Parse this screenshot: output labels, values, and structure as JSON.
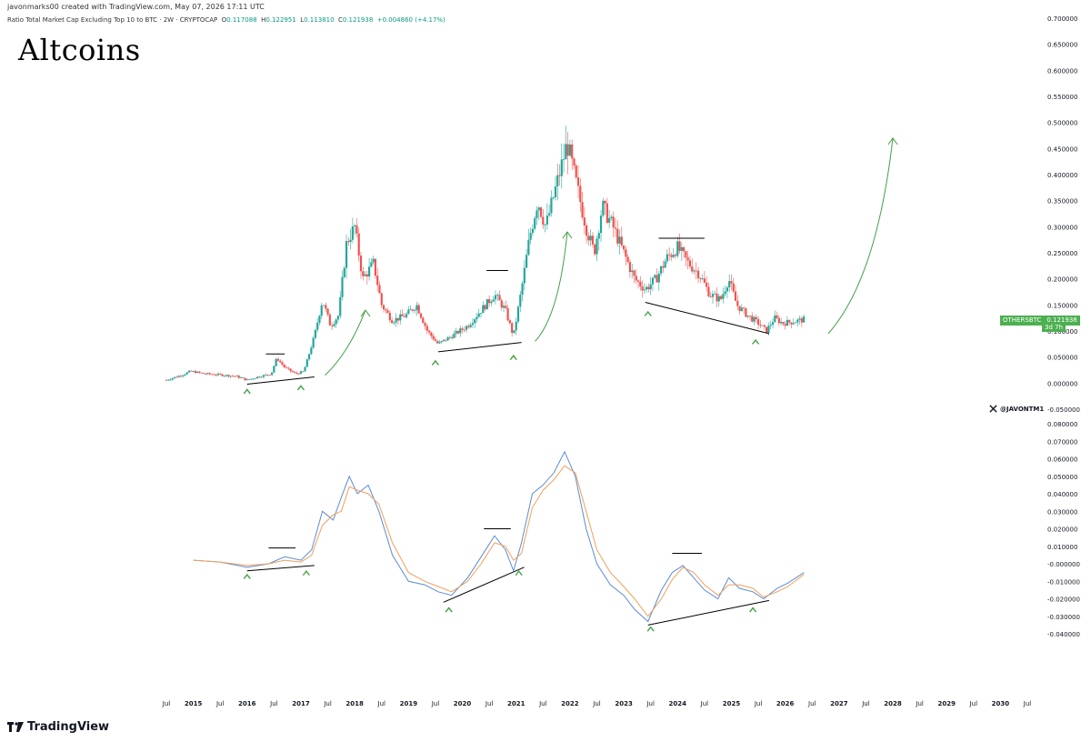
{
  "header": {
    "creator_line": "javonmarks00 created with TradingView.com, May 07, 2026 17:11 UTC",
    "symbol_desc": "Ratio Total Market Cap Excluding Top 10 to BTC · 2W · CRYPTOCAP",
    "o_label": "O",
    "o_value": "0.117088",
    "h_label": "H",
    "h_value": "0.122951",
    "l_label": "L",
    "l_value": "0.113810",
    "c_label": "C",
    "c_value": "0.121938",
    "change": "+0.004860 (+4.17%)"
  },
  "title": "Altcoins",
  "price_tag": {
    "symbol": "OTHERSBTC",
    "value": "0.121938",
    "countdown": "3d 7h"
  },
  "watermark": "@JAVONTM1",
  "brand": "TradingView",
  "colors": {
    "up": "#26a69a",
    "down": "#ef5350",
    "macd": "#5b8bd6",
    "signal": "#f0a05a",
    "arrow": "#43a047",
    "trend": "#000000",
    "tag": "#4caf50"
  },
  "chart_data": [
    {
      "type": "candlestick",
      "name": "price",
      "ylim": [
        -0.05,
        0.7
      ],
      "y_ticks": [
        "0.700000",
        "0.650000",
        "0.600000",
        "0.550000",
        "0.500000",
        "0.450000",
        "0.400000",
        "0.350000",
        "0.300000",
        "0.250000",
        "0.200000",
        "0.150000",
        "0.100000",
        "0.050000",
        "0.000000",
        "-0.050000"
      ],
      "x_ticks": [
        "Jul",
        "2015",
        "Jul",
        "2016",
        "Jul",
        "2017",
        "Jul",
        "2018",
        "Jul",
        "2019",
        "Jul",
        "2020",
        "Jul",
        "2021",
        "Jul",
        "2022",
        "Jul",
        "2023",
        "Jul",
        "2024",
        "Jul",
        "2025",
        "Jul",
        "2026",
        "Jul",
        "2027",
        "Jul",
        "2028",
        "Jul",
        "2029",
        "Jul",
        "2030",
        "Jul"
      ],
      "x_range": [
        2014.5,
        2030.5
      ],
      "grid": false,
      "close_path": [
        [
          2014.5,
          0.006
        ],
        [
          2014.8,
          0.016
        ],
        [
          2014.95,
          0.023
        ],
        [
          2015.2,
          0.018
        ],
        [
          2015.5,
          0.016
        ],
        [
          2015.8,
          0.013
        ],
        [
          2016.0,
          0.006
        ],
        [
          2016.2,
          0.012
        ],
        [
          2016.45,
          0.018
        ],
        [
          2016.55,
          0.048
        ],
        [
          2016.7,
          0.03
        ],
        [
          2016.9,
          0.018
        ],
        [
          2017.05,
          0.022
        ],
        [
          2017.15,
          0.055
        ],
        [
          2017.25,
          0.09
        ],
        [
          2017.4,
          0.16
        ],
        [
          2017.55,
          0.11
        ],
        [
          2017.7,
          0.13
        ],
        [
          2017.85,
          0.27
        ],
        [
          2018.0,
          0.3
        ],
        [
          2018.15,
          0.2
        ],
        [
          2018.35,
          0.23
        ],
        [
          2018.5,
          0.15
        ],
        [
          2018.7,
          0.12
        ],
        [
          2018.95,
          0.13
        ],
        [
          2019.15,
          0.15
        ],
        [
          2019.35,
          0.1
        ],
        [
          2019.55,
          0.075
        ],
        [
          2019.8,
          0.09
        ],
        [
          2020.1,
          0.11
        ],
        [
          2020.35,
          0.14
        ],
        [
          2020.6,
          0.17
        ],
        [
          2020.8,
          0.14
        ],
        [
          2020.95,
          0.09
        ],
        [
          2021.1,
          0.18
        ],
        [
          2021.25,
          0.28
        ],
        [
          2021.4,
          0.35
        ],
        [
          2021.55,
          0.3
        ],
        [
          2021.75,
          0.38
        ],
        [
          2021.95,
          0.46
        ],
        [
          2022.1,
          0.39
        ],
        [
          2022.3,
          0.3
        ],
        [
          2022.45,
          0.25
        ],
        [
          2022.6,
          0.34
        ],
        [
          2022.8,
          0.3
        ],
        [
          2023.0,
          0.25
        ],
        [
          2023.2,
          0.2
        ],
        [
          2023.4,
          0.18
        ],
        [
          2023.6,
          0.2
        ],
        [
          2023.8,
          0.24
        ],
        [
          2024.0,
          0.26
        ],
        [
          2024.2,
          0.23
        ],
        [
          2024.4,
          0.21
        ],
        [
          2024.6,
          0.17
        ],
        [
          2024.8,
          0.16
        ],
        [
          2024.95,
          0.2
        ],
        [
          2025.1,
          0.15
        ],
        [
          2025.3,
          0.13
        ],
        [
          2025.5,
          0.115
        ],
        [
          2025.65,
          0.1
        ],
        [
          2025.8,
          0.125
        ],
        [
          2025.95,
          0.115
        ],
        [
          2026.15,
          0.118
        ],
        [
          2026.35,
          0.121938
        ]
      ],
      "trendlines": [
        {
          "from": [
            2016.0,
            -0.002
          ],
          "to": [
            2017.25,
            0.012
          ]
        },
        {
          "from": [
            2019.55,
            0.06
          ],
          "to": [
            2021.1,
            0.078
          ]
        },
        {
          "from": [
            2023.4,
            0.155
          ],
          "to": [
            2025.7,
            0.095
          ]
        }
      ],
      "resistance_lines": [
        {
          "from": [
            2016.35,
            0.056
          ],
          "to": [
            2016.7,
            0.056
          ]
        },
        {
          "from": [
            2020.45,
            0.216
          ],
          "to": [
            2020.85,
            0.216
          ]
        },
        {
          "from": [
            2023.65,
            0.278
          ],
          "to": [
            2024.5,
            0.278
          ]
        }
      ],
      "up_markers": [
        [
          2016.0,
          -0.015
        ],
        [
          2017.0,
          -0.008
        ],
        [
          2019.5,
          0.04
        ],
        [
          2020.95,
          0.05
        ],
        [
          2023.45,
          0.134
        ],
        [
          2025.45,
          0.08
        ]
      ],
      "arrows": [
        {
          "points": [
            [
              2017.45,
              0.015
            ],
            [
              2017.9,
              0.06
            ],
            [
              2018.2,
              0.14
            ]
          ]
        },
        {
          "points": [
            [
              2021.35,
              0.08
            ],
            [
              2021.8,
              0.13
            ],
            [
              2021.95,
              0.29
            ]
          ]
        },
        {
          "points": [
            [
              2026.8,
              0.095
            ],
            [
              2027.7,
              0.2
            ],
            [
              2028.0,
              0.47
            ]
          ]
        }
      ]
    },
    {
      "type": "line",
      "name": "oscillator",
      "ylim": [
        -0.04,
        0.08
      ],
      "y_ticks": [
        "0.080000",
        "0.070000",
        "0.060000",
        "0.050000",
        "0.040000",
        "0.030000",
        "0.020000",
        "0.010000",
        "-0.000000",
        "-0.010000",
        "-0.020000",
        "-0.030000",
        "-0.040000"
      ],
      "series": [
        {
          "values_key": "fast",
          "points": [
            [
              2015.0,
              0.002
            ],
            [
              2015.5,
              0.001
            ],
            [
              2016.0,
              -0.002
            ],
            [
              2016.4,
              0.0
            ],
            [
              2016.7,
              0.004
            ],
            [
              2017.0,
              0.002
            ],
            [
              2017.2,
              0.008
            ],
            [
              2017.4,
              0.03
            ],
            [
              2017.6,
              0.025
            ],
            [
              2017.75,
              0.038
            ],
            [
              2017.9,
              0.05
            ],
            [
              2018.05,
              0.04
            ],
            [
              2018.25,
              0.045
            ],
            [
              2018.45,
              0.03
            ],
            [
              2018.7,
              0.005
            ],
            [
              2019.0,
              -0.01
            ],
            [
              2019.3,
              -0.012
            ],
            [
              2019.55,
              -0.016
            ],
            [
              2019.8,
              -0.018
            ],
            [
              2020.1,
              -0.008
            ],
            [
              2020.35,
              0.004
            ],
            [
              2020.6,
              0.016
            ],
            [
              2020.8,
              0.008
            ],
            [
              2020.95,
              -0.004
            ],
            [
              2021.1,
              0.012
            ],
            [
              2021.3,
              0.04
            ],
            [
              2021.5,
              0.045
            ],
            [
              2021.7,
              0.052
            ],
            [
              2021.9,
              0.064
            ],
            [
              2022.1,
              0.05
            ],
            [
              2022.3,
              0.02
            ],
            [
              2022.5,
              0.0
            ],
            [
              2022.75,
              -0.012
            ],
            [
              2023.0,
              -0.018
            ],
            [
              2023.2,
              -0.026
            ],
            [
              2023.45,
              -0.033
            ],
            [
              2023.7,
              -0.015
            ],
            [
              2023.9,
              -0.005
            ],
            [
              2024.1,
              -0.001
            ],
            [
              2024.3,
              -0.008
            ],
            [
              2024.5,
              -0.015
            ],
            [
              2024.75,
              -0.02
            ],
            [
              2024.95,
              -0.008
            ],
            [
              2025.15,
              -0.014
            ],
            [
              2025.4,
              -0.016
            ],
            [
              2025.6,
              -0.02
            ],
            [
              2025.85,
              -0.014
            ],
            [
              2026.05,
              -0.011
            ],
            [
              2026.35,
              -0.005
            ]
          ]
        },
        {
          "values_key": "slow",
          "points": [
            [
              2015.0,
              0.002
            ],
            [
              2015.5,
              0.001
            ],
            [
              2016.0,
              -0.001
            ],
            [
              2016.4,
              0.0
            ],
            [
              2016.7,
              0.002
            ],
            [
              2017.0,
              0.001
            ],
            [
              2017.2,
              0.005
            ],
            [
              2017.4,
              0.022
            ],
            [
              2017.6,
              0.028
            ],
            [
              2017.75,
              0.03
            ],
            [
              2017.9,
              0.044
            ],
            [
              2018.05,
              0.042
            ],
            [
              2018.25,
              0.04
            ],
            [
              2018.45,
              0.034
            ],
            [
              2018.7,
              0.012
            ],
            [
              2019.0,
              -0.005
            ],
            [
              2019.3,
              -0.01
            ],
            [
              2019.55,
              -0.013
            ],
            [
              2019.8,
              -0.016
            ],
            [
              2020.1,
              -0.01
            ],
            [
              2020.35,
              0.0
            ],
            [
              2020.6,
              0.012
            ],
            [
              2020.8,
              0.01
            ],
            [
              2020.95,
              0.002
            ],
            [
              2021.1,
              0.006
            ],
            [
              2021.3,
              0.032
            ],
            [
              2021.5,
              0.042
            ],
            [
              2021.7,
              0.048
            ],
            [
              2021.9,
              0.056
            ],
            [
              2022.1,
              0.052
            ],
            [
              2022.3,
              0.03
            ],
            [
              2022.5,
              0.008
            ],
            [
              2022.75,
              -0.005
            ],
            [
              2023.0,
              -0.013
            ],
            [
              2023.2,
              -0.02
            ],
            [
              2023.45,
              -0.03
            ],
            [
              2023.7,
              -0.02
            ],
            [
              2023.9,
              -0.009
            ],
            [
              2024.1,
              -0.002
            ],
            [
              2024.3,
              -0.005
            ],
            [
              2024.5,
              -0.012
            ],
            [
              2024.75,
              -0.018
            ],
            [
              2024.95,
              -0.012
            ],
            [
              2025.15,
              -0.012
            ],
            [
              2025.4,
              -0.014
            ],
            [
              2025.6,
              -0.019
            ],
            [
              2025.85,
              -0.016
            ],
            [
              2026.05,
              -0.013
            ],
            [
              2026.35,
              -0.006
            ]
          ]
        }
      ],
      "trendlines": [
        {
          "from": [
            2016.0,
            -0.004
          ],
          "to": [
            2017.25,
            -0.001
          ]
        },
        {
          "from": [
            2019.65,
            -0.022
          ],
          "to": [
            2021.15,
            -0.002
          ]
        },
        {
          "from": [
            2023.45,
            -0.035
          ],
          "to": [
            2025.7,
            -0.021
          ]
        }
      ],
      "resistance_lines": [
        {
          "from": [
            2016.4,
            0.009
          ],
          "to": [
            2016.9,
            0.009
          ]
        },
        {
          "from": [
            2020.4,
            0.02
          ],
          "to": [
            2020.9,
            0.02
          ]
        },
        {
          "from": [
            2023.9,
            0.006
          ],
          "to": [
            2024.45,
            0.006
          ]
        }
      ],
      "up_markers": [
        [
          2016.0,
          -0.007
        ],
        [
          2017.1,
          -0.005
        ],
        [
          2019.75,
          -0.026
        ],
        [
          2021.05,
          -0.005
        ],
        [
          2023.5,
          -0.037
        ],
        [
          2025.4,
          -0.026
        ]
      ]
    }
  ]
}
